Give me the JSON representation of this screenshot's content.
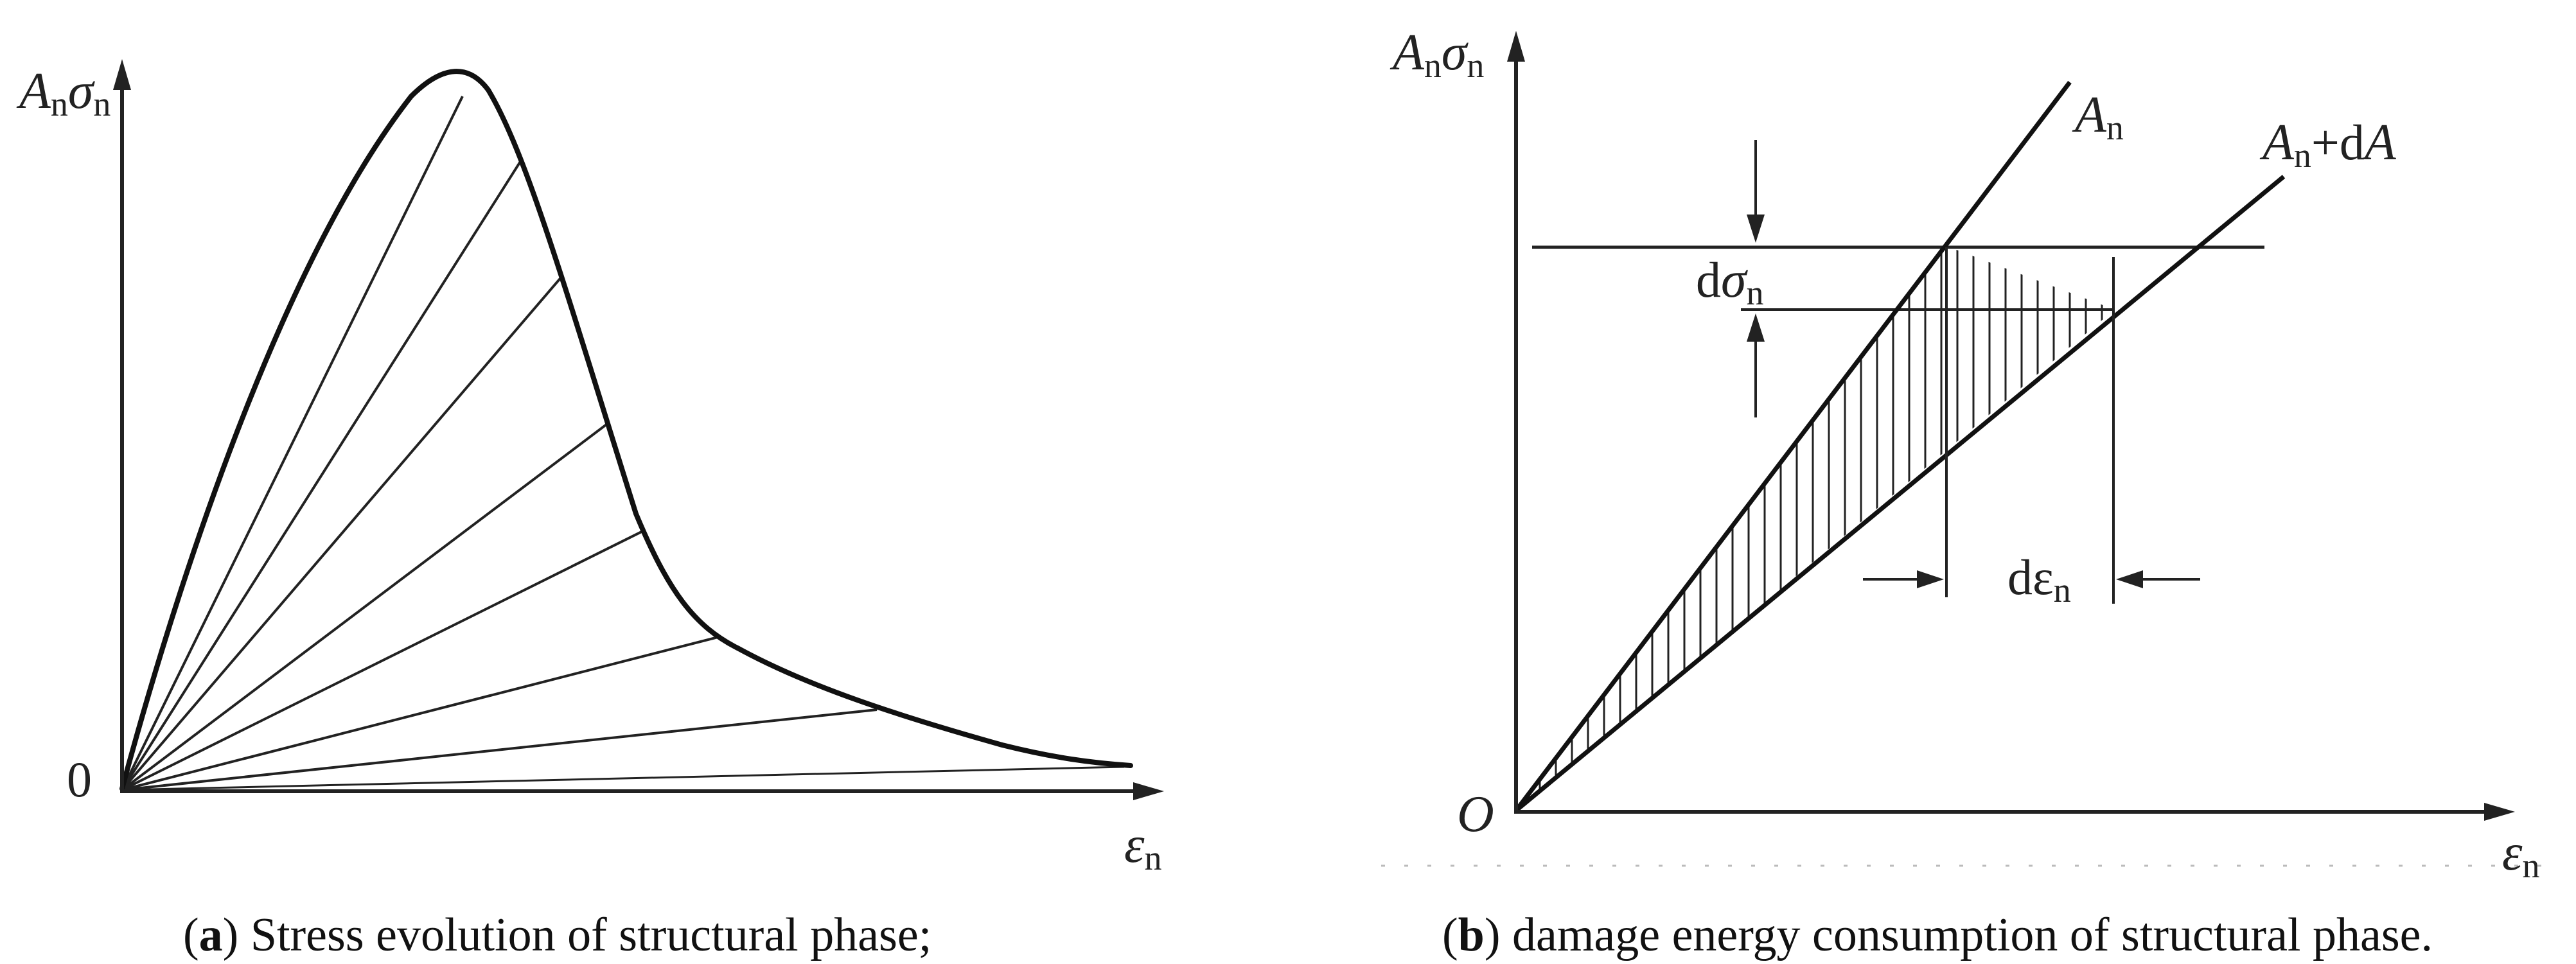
{
  "panel_a": {
    "y_axis_label": {
      "main": "A",
      "main_sub": "n",
      "second": "σ",
      "second_sub": "n"
    },
    "origin_label": "0",
    "x_axis_label": {
      "main": "ε",
      "sub": "n"
    },
    "caption": {
      "open": "(",
      "letter": "a",
      "close": ")",
      "text": " Stress evolution of structural phase;"
    }
  },
  "panel_b": {
    "y_axis_label": {
      "main": "A",
      "main_sub": "n",
      "second": "σ",
      "second_sub": "n"
    },
    "origin_label": "O",
    "x_axis_label": {
      "main": "ε",
      "sub": "n"
    },
    "line_label_upper": {
      "main": "A",
      "sub": "n"
    },
    "line_label_lower": {
      "main": "A",
      "sub": "n",
      "plus": "+d",
      "tail": "A"
    },
    "dsigma_label": {
      "d": "d",
      "main": "σ",
      "sub": "n"
    },
    "depsilon_label": {
      "d": "dε",
      "sub": "n"
    },
    "caption": {
      "open": "(",
      "letter": "b",
      "close": ")",
      "text": " damage energy consumption of structural phase."
    }
  },
  "colors": {
    "ink": "#222222",
    "background": "#ffffff"
  }
}
